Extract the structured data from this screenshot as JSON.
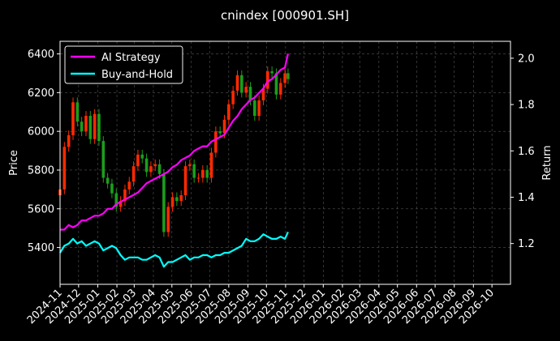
{
  "chart_data": {
    "type": "line",
    "title": "cnindex [000901.SH]",
    "ylabel_left": "Price",
    "ylabel_right": "Return",
    "ylim_left": [
      5210,
      6465
    ],
    "ylim_right": [
      1.024,
      2.073
    ],
    "yticks_left": [
      5400,
      5600,
      5800,
      6000,
      6200,
      6400
    ],
    "yticks_right": [
      1.2,
      1.4,
      1.6,
      1.8,
      2.0
    ],
    "xlim": [
      "2024-11-01",
      "2026-10-31"
    ],
    "xticks": [
      "2024-11",
      "2024-12",
      "2025-01",
      "2025-02",
      "2025-03",
      "2025-04",
      "2025-05",
      "2025-06",
      "2025-07",
      "2025-08",
      "2025-09",
      "2025-10",
      "2025-11",
      "2025-12",
      "2026-01",
      "2026-02",
      "2026-03",
      "2026-04",
      "2026-05",
      "2026-06",
      "2026-07",
      "2026-08",
      "2026-09",
      "2026-10"
    ],
    "grid": true,
    "legend_position": "top-left",
    "colors": {
      "ai_strategy": "#ff00ff",
      "buy_and_hold": "#00ffff",
      "candle_up": "#ff2a00",
      "candle_down": "#1b9e1b",
      "grid": "#555555",
      "background": "#000000"
    },
    "series": [
      {
        "name": "AI Strategy",
        "axis": "right",
        "x": [
          "2024-11-01",
          "2024-11-08",
          "2024-11-15",
          "2024-11-22",
          "2024-11-29",
          "2024-12-06",
          "2024-12-13",
          "2024-12-20",
          "2024-12-27",
          "2025-01-03",
          "2025-01-10",
          "2025-01-17",
          "2025-01-24",
          "2025-01-31",
          "2025-02-07",
          "2025-02-14",
          "2025-02-21",
          "2025-02-28",
          "2025-03-07",
          "2025-03-14",
          "2025-03-21",
          "2025-03-28",
          "2025-04-04",
          "2025-04-11",
          "2025-04-18",
          "2025-04-25",
          "2025-05-02",
          "2025-05-09",
          "2025-05-16",
          "2025-05-23",
          "2025-05-30",
          "2025-06-06",
          "2025-06-13",
          "2025-06-20",
          "2025-06-27",
          "2025-07-04",
          "2025-07-11",
          "2025-07-18",
          "2025-07-25",
          "2025-08-01",
          "2025-08-08",
          "2025-08-15",
          "2025-08-22",
          "2025-08-29",
          "2025-09-05",
          "2025-09-12",
          "2025-09-19",
          "2025-09-26",
          "2025-10-03",
          "2025-10-10",
          "2025-10-17",
          "2025-10-24",
          "2025-10-31",
          "2025-11-05"
        ],
        "values": [
          1.26,
          1.26,
          1.28,
          1.27,
          1.28,
          1.3,
          1.3,
          1.31,
          1.32,
          1.32,
          1.33,
          1.35,
          1.35,
          1.37,
          1.38,
          1.39,
          1.4,
          1.41,
          1.42,
          1.44,
          1.46,
          1.47,
          1.48,
          1.49,
          1.5,
          1.51,
          1.53,
          1.54,
          1.56,
          1.57,
          1.58,
          1.6,
          1.61,
          1.62,
          1.62,
          1.64,
          1.65,
          1.66,
          1.67,
          1.7,
          1.73,
          1.75,
          1.78,
          1.8,
          1.82,
          1.83,
          1.85,
          1.87,
          1.9,
          1.91,
          1.93,
          1.95,
          1.96,
          2.02
        ]
      },
      {
        "name": "Buy-and-Hold",
        "axis": "right",
        "x": [
          "2024-11-01",
          "2024-11-08",
          "2024-11-15",
          "2024-11-22",
          "2024-11-29",
          "2024-12-06",
          "2024-12-13",
          "2024-12-20",
          "2024-12-27",
          "2025-01-03",
          "2025-01-10",
          "2025-01-17",
          "2025-01-24",
          "2025-01-31",
          "2025-02-07",
          "2025-02-14",
          "2025-02-21",
          "2025-02-28",
          "2025-03-07",
          "2025-03-14",
          "2025-03-21",
          "2025-03-28",
          "2025-04-04",
          "2025-04-11",
          "2025-04-18",
          "2025-04-25",
          "2025-05-02",
          "2025-05-09",
          "2025-05-16",
          "2025-05-23",
          "2025-05-30",
          "2025-06-06",
          "2025-06-13",
          "2025-06-20",
          "2025-06-27",
          "2025-07-04",
          "2025-07-11",
          "2025-07-18",
          "2025-07-25",
          "2025-08-01",
          "2025-08-08",
          "2025-08-15",
          "2025-08-22",
          "2025-08-29",
          "2025-09-05",
          "2025-09-12",
          "2025-09-19",
          "2025-09-26",
          "2025-10-03",
          "2025-10-10",
          "2025-10-17",
          "2025-10-24",
          "2025-10-31",
          "2025-11-05"
        ],
        "values": [
          1.16,
          1.19,
          1.2,
          1.22,
          1.2,
          1.21,
          1.19,
          1.2,
          1.21,
          1.2,
          1.17,
          1.18,
          1.19,
          1.18,
          1.15,
          1.13,
          1.14,
          1.14,
          1.14,
          1.13,
          1.13,
          1.14,
          1.15,
          1.14,
          1.1,
          1.12,
          1.12,
          1.13,
          1.14,
          1.15,
          1.13,
          1.14,
          1.14,
          1.15,
          1.15,
          1.14,
          1.15,
          1.15,
          1.16,
          1.16,
          1.17,
          1.18,
          1.19,
          1.22,
          1.21,
          1.21,
          1.22,
          1.24,
          1.23,
          1.22,
          1.22,
          1.23,
          1.22,
          1.25
        ]
      }
    ],
    "candles": {
      "axis": "left",
      "x": [
        "2024-11-01",
        "2024-11-08",
        "2024-11-15",
        "2024-11-22",
        "2024-11-29",
        "2024-12-06",
        "2024-12-13",
        "2024-12-20",
        "2024-12-27",
        "2025-01-03",
        "2025-01-10",
        "2025-01-17",
        "2025-01-24",
        "2025-01-31",
        "2025-02-07",
        "2025-02-14",
        "2025-02-21",
        "2025-02-28",
        "2025-03-07",
        "2025-03-14",
        "2025-03-21",
        "2025-03-28",
        "2025-04-04",
        "2025-04-11",
        "2025-04-18",
        "2025-04-25",
        "2025-05-02",
        "2025-05-09",
        "2025-05-16",
        "2025-05-23",
        "2025-05-30",
        "2025-06-06",
        "2025-06-13",
        "2025-06-20",
        "2025-06-27",
        "2025-07-04",
        "2025-07-11",
        "2025-07-18",
        "2025-07-25",
        "2025-08-01",
        "2025-08-08",
        "2025-08-15",
        "2025-08-22",
        "2025-08-29",
        "2025-09-05",
        "2025-09-12",
        "2025-09-19",
        "2025-09-26",
        "2025-10-03",
        "2025-10-10",
        "2025-10-17",
        "2025-10-24",
        "2025-10-31",
        "2025-11-05"
      ],
      "close": [
        5700,
        5920,
        5980,
        6150,
        6050,
        6000,
        6080,
        5960,
        6090,
        5950,
        5760,
        5730,
        5680,
        5610,
        5640,
        5700,
        5740,
        5820,
        5880,
        5860,
        5790,
        5820,
        5830,
        5780,
        5480,
        5610,
        5660,
        5640,
        5670,
        5820,
        5830,
        5760,
        5760,
        5800,
        5760,
        5890,
        6000,
        5990,
        6060,
        6140,
        6210,
        6290,
        6200,
        6230,
        6160,
        6080,
        6160,
        6220,
        6310,
        6300,
        6190,
        6250,
        6300,
        6270
      ]
    }
  }
}
